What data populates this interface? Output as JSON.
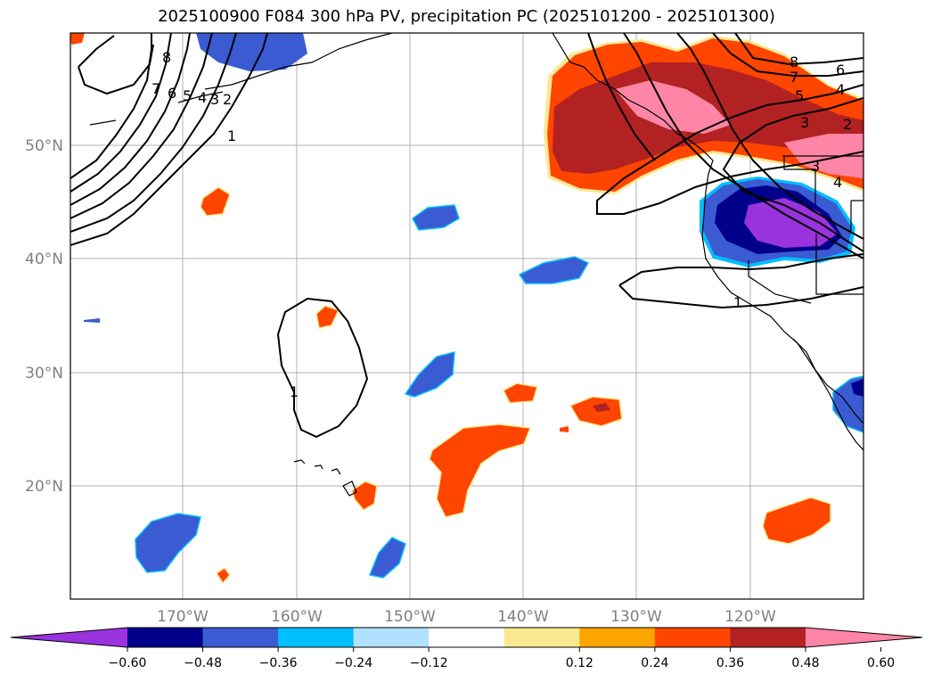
{
  "title": "2025100900 F084 300 hPa PV, precipitation PC (2025101200 - 2025101300)",
  "lat_labels": [
    "50°N",
    "40°N",
    "30°N",
    "20°N"
  ],
  "lon_labels": [
    "170°W",
    "160°W",
    "150°W",
    "140°W",
    "130°W",
    "120°W"
  ],
  "colorbar": {
    "colors": [
      "#9933dd",
      "#00008b",
      "#3b5bd2",
      "#00bfff",
      "#b0e2ff",
      "#ffffff",
      "#fbe890",
      "#ffa500",
      "#ff4500",
      "#b22222",
      "#ff85a6"
    ],
    "ticks": [
      "−0.60",
      "−0.48",
      "−0.36",
      "−0.24",
      "−0.12",
      "0.12",
      "0.24",
      "0.36",
      "0.48",
      "0.60"
    ]
  },
  "contour_labels": [
    "8",
    "7",
    "6",
    "5",
    "4",
    "3",
    "2",
    "1",
    "1",
    "1",
    "8",
    "7",
    "6",
    "5",
    "4",
    "3",
    "2",
    "3",
    "4"
  ]
}
